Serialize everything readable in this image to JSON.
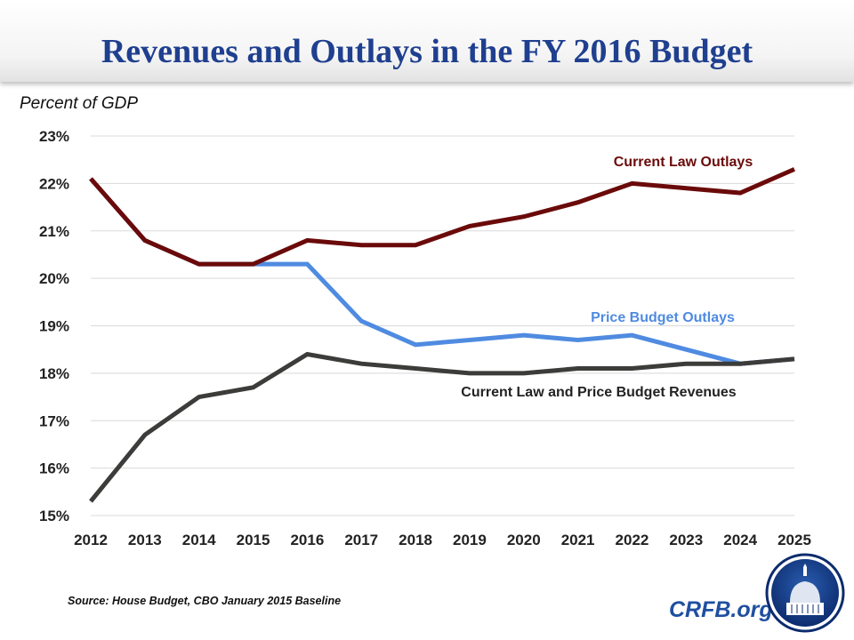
{
  "chart_data": {
    "type": "line",
    "title": "Revenues and Outlays in the FY 2016 Budget",
    "ylabel": "Percent of GDP",
    "xlabel": "",
    "x": [
      2012,
      2013,
      2014,
      2015,
      2016,
      2017,
      2018,
      2019,
      2020,
      2021,
      2022,
      2023,
      2024,
      2025
    ],
    "ylim": [
      15,
      23
    ],
    "yticks": [
      "15%",
      "16%",
      "17%",
      "18%",
      "19%",
      "20%",
      "21%",
      "22%",
      "23%"
    ],
    "grid": true,
    "series": [
      {
        "name": "Current Law Outlays",
        "color": "#6b0a0a",
        "values": [
          22.1,
          20.8,
          20.3,
          20.3,
          20.8,
          20.7,
          20.7,
          21.1,
          21.3,
          21.6,
          22.0,
          21.9,
          21.8,
          22.3
        ]
      },
      {
        "name": "Price Budget Outlays",
        "color": "#4f8be0",
        "values": [
          22.1,
          20.8,
          20.3,
          20.3,
          20.3,
          19.1,
          18.6,
          18.7,
          18.8,
          18.7,
          18.8,
          18.5,
          18.2,
          18.3
        ]
      },
      {
        "name": "Current Law and Price Budget Revenues",
        "color": "#3c3c3a",
        "values": [
          15.3,
          16.7,
          17.5,
          17.7,
          18.4,
          18.2,
          18.1,
          18.0,
          18.0,
          18.1,
          18.1,
          18.2,
          18.2,
          18.3
        ]
      }
    ],
    "source": "Source: House Budget, CBO January 2015 Baseline"
  },
  "brand": "CRFB.org"
}
